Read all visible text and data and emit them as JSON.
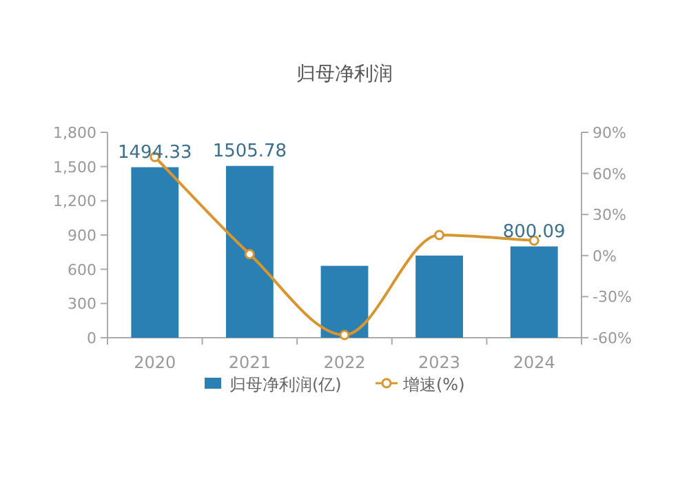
{
  "chart_data": {
    "type": "bar",
    "title": "归母净利润",
    "categories": [
      "2020",
      "2021",
      "2022",
      "2023",
      "2024"
    ],
    "series": [
      {
        "name": "归母净利润(亿)",
        "color": "#2a7fb3",
        "values": [
          1494.33,
          1505.78,
          630,
          720,
          800.09
        ],
        "value_labels": [
          "1494.33",
          "1505.78",
          null,
          null,
          "800.09"
        ]
      },
      {
        "name": "增速(%)",
        "type": "line",
        "axis": "y2",
        "color": "#d9962e",
        "marker": "circle",
        "values": [
          72,
          1,
          -58,
          15,
          11
        ]
      }
    ],
    "ylim": [
      0,
      1800
    ],
    "yticks": [
      0,
      300,
      600,
      900,
      {
        "value": 1200,
        "label": "1,200"
      },
      {
        "value": 1500,
        "label": "1,500"
      },
      {
        "value": 1800,
        "label": "1,800"
      }
    ],
    "y2lim": [
      -60,
      90
    ],
    "y2ticks": [
      {
        "value": -60,
        "label": "-60%"
      },
      {
        "value": -30,
        "label": "-30%"
      },
      {
        "value": 0,
        "label": "0%"
      },
      {
        "value": 30,
        "label": "30%"
      },
      {
        "value": 60,
        "label": "60%"
      },
      {
        "value": 90,
        "label": "90%"
      }
    ],
    "legend": "bottom"
  }
}
